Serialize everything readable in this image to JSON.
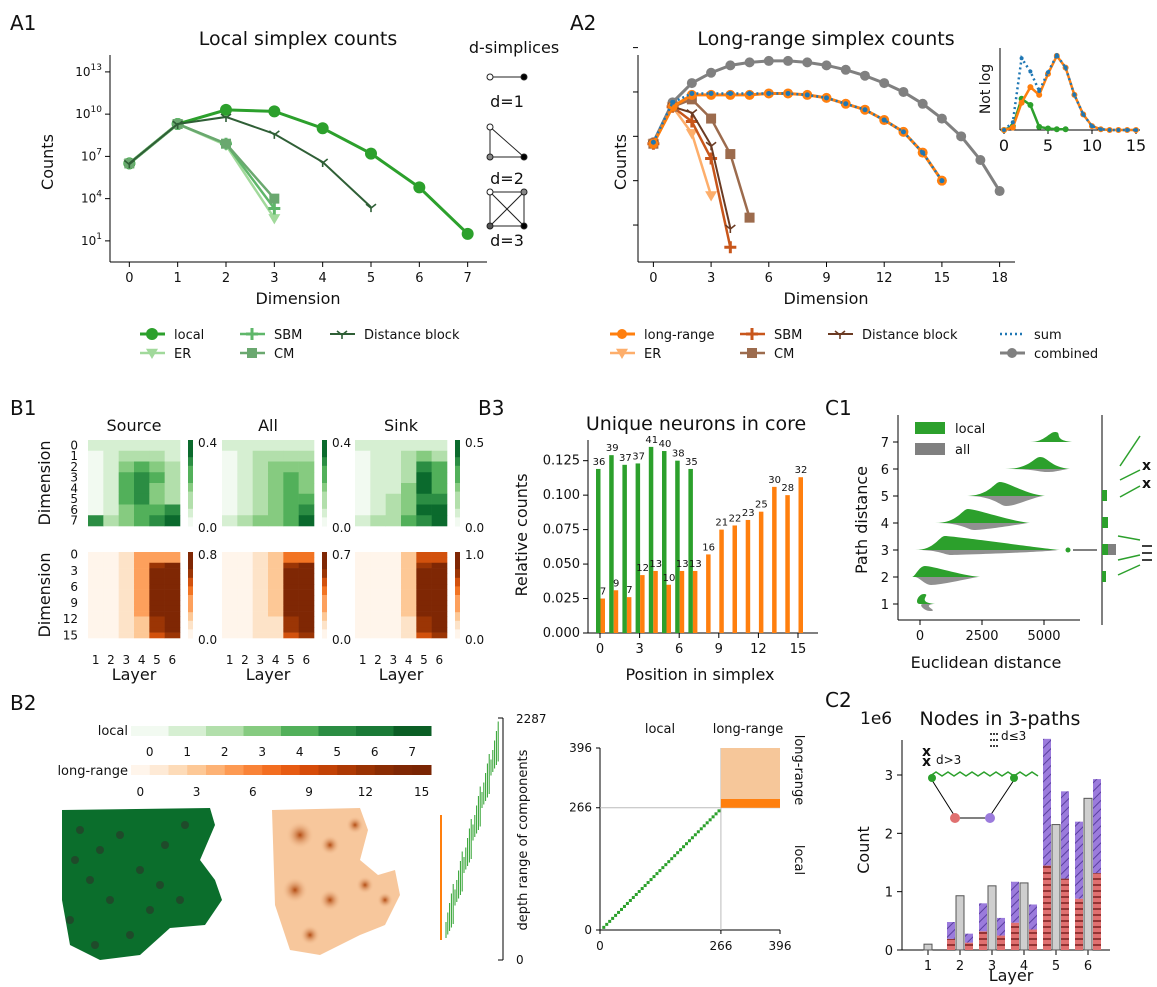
{
  "panels": {
    "A1": "A1",
    "A2": "A2",
    "B1": "B1",
    "B2": "B2",
    "B3": "B3",
    "C1": "C1",
    "C2": "C2"
  },
  "colors": {
    "local": "#2ca02c",
    "local_light": "#a1d99b",
    "local_mid": "#5fb76a",
    "local_dark": "#2f5f36",
    "long": "#ff7f0e",
    "long_light": "#fdae6b",
    "brown": "#b05a2a",
    "brown_light": "#9c6b4d",
    "sum": "#1f77b4",
    "combined": "#808080",
    "red": "#e07070",
    "purple": "#9b7bdc"
  },
  "chart_data": [
    {
      "id": "A1",
      "type": "line",
      "title": "Local simplex counts",
      "xlabel": "Dimension",
      "ylabel": "Counts",
      "yscale": "log",
      "xticks": [
        "0",
        "1",
        "2",
        "3",
        "4",
        "5",
        "6",
        "7"
      ],
      "yticks": [
        "10^1",
        "10^4",
        "10^7",
        "10^10",
        "10^13"
      ],
      "ylim_exp": [
        -0.5,
        14.2
      ],
      "xlim": [
        -0.4,
        7.4
      ],
      "series": [
        {
          "name": "local",
          "x": [
            0,
            1,
            2,
            3,
            4,
            5,
            6,
            7
          ],
          "log10": [
            6.5,
            9.3,
            10.3,
            10.2,
            9.0,
            7.2,
            4.8,
            1.5
          ]
        },
        {
          "name": "ER",
          "x": [
            0,
            1,
            2,
            3
          ],
          "log10": [
            6.5,
            9.3,
            7.8,
            2.6
          ]
        },
        {
          "name": "SBM",
          "x": [
            0,
            1,
            2,
            3
          ],
          "log10": [
            6.5,
            9.3,
            7.9,
            3.3
          ]
        },
        {
          "name": "CM",
          "x": [
            0,
            1,
            2,
            3
          ],
          "log10": [
            6.5,
            9.3,
            7.9,
            4.0
          ]
        },
        {
          "name": "Distance block",
          "x": [
            0,
            1,
            2,
            3,
            4,
            5
          ],
          "log10": [
            6.5,
            9.3,
            9.8,
            8.6,
            6.6,
            3.4
          ]
        }
      ],
      "legend": [
        "local",
        "SBM",
        "Distance block",
        "ER",
        "CM"
      ],
      "inset_title": "d-simplices",
      "inset_labels": [
        "d=1",
        "d=2",
        "d=3"
      ]
    },
    {
      "id": "A2",
      "type": "line",
      "title": "Long-range simplex counts",
      "xlabel": "Dimension",
      "ylabel": "Counts",
      "yscale": "log",
      "xticks": [
        "0",
        "3",
        "6",
        "9",
        "12",
        "15",
        "18"
      ],
      "series": [
        {
          "name": "long-range",
          "x": [
            0,
            1,
            2,
            3,
            4,
            5,
            6,
            7,
            8,
            9,
            10,
            11,
            12,
            13,
            14,
            15
          ],
          "log10": [
            6.5,
            9.0,
            9.8,
            9.8,
            9.8,
            9.8,
            9.9,
            9.9,
            9.8,
            9.6,
            9.2,
            8.8,
            8.1,
            7.3,
            5.9,
            4.0
          ]
        },
        {
          "name": "ER",
          "x": [
            0,
            1,
            2,
            3
          ],
          "log10": [
            6.5,
            9.0,
            7.2,
            3.0
          ]
        },
        {
          "name": "SBM",
          "x": [
            0,
            1,
            2,
            3,
            4
          ],
          "log10": [
            6.5,
            9.0,
            8.0,
            5.5,
            -0.5
          ]
        },
        {
          "name": "CM",
          "x": [
            0,
            1,
            2,
            3,
            4,
            5
          ],
          "log10": [
            6.5,
            9.0,
            9.5,
            8.2,
            5.8,
            1.5
          ]
        },
        {
          "name": "Distance block",
          "x": [
            0,
            1,
            2,
            3,
            4
          ],
          "log10": [
            6.5,
            9.0,
            8.6,
            6.4,
            0.8
          ]
        },
        {
          "name": "sum",
          "x": [
            0,
            1,
            2,
            3,
            4,
            5,
            6,
            7,
            8,
            9,
            10,
            11,
            12,
            13,
            14,
            15
          ],
          "log10": [
            6.6,
            9.3,
            9.9,
            9.9,
            9.9,
            9.9,
            9.9,
            9.9,
            9.8,
            9.6,
            9.2,
            8.8,
            8.1,
            7.3,
            5.9,
            4.0
          ]
        },
        {
          "name": "combined",
          "x": [
            0,
            1,
            2,
            3,
            4,
            5,
            6,
            7,
            8,
            9,
            10,
            11,
            12,
            13,
            14,
            15,
            16,
            17,
            18
          ],
          "log10": [
            6.6,
            9.3,
            10.6,
            11.3,
            11.8,
            12.0,
            12.1,
            12.1,
            12.0,
            11.8,
            11.5,
            11.1,
            10.6,
            10.0,
            9.2,
            8.2,
            7.0,
            5.4,
            3.3
          ]
        }
      ],
      "legend": [
        "long-range",
        "SBM",
        "Distance block",
        "sum",
        "ER",
        "CM",
        "combined"
      ],
      "inset": {
        "ylabel": "Not log",
        "xticks": [
          "0",
          "5",
          "10",
          "15"
        ],
        "series": [
          {
            "name": "local",
            "x": [
              0,
              1,
              2,
              3,
              4,
              5,
              6,
              7
            ],
            "v": [
              0.0,
              0.05,
              0.4,
              0.32,
              0.04,
              0.02,
              0.01,
              0.01
            ]
          },
          {
            "name": "long-range",
            "x": [
              0,
              1,
              2,
              3,
              4,
              5,
              6,
              7,
              8,
              9,
              10,
              11,
              12,
              13,
              14,
              15
            ],
            "v": [
              0.0,
              0.03,
              0.35,
              0.55,
              0.45,
              0.72,
              0.95,
              0.8,
              0.45,
              0.2,
              0.05,
              0.01,
              0.0,
              0.0,
              0.0,
              0.0
            ]
          },
          {
            "name": "sum",
            "x": [
              0,
              1,
              2,
              3,
              4,
              5,
              6,
              7,
              8,
              9,
              10,
              11,
              12,
              13,
              14,
              15
            ],
            "v": [
              0.0,
              0.1,
              0.92,
              0.75,
              0.5,
              0.74,
              0.96,
              0.8,
              0.45,
              0.2,
              0.05,
              0.01,
              0.0,
              0.0,
              0.0,
              0.0
            ]
          }
        ]
      }
    },
    {
      "id": "B1",
      "type": "heatmap",
      "titles": [
        "Source",
        "All",
        "Sink"
      ],
      "xlabel": "Layer",
      "ylabel": "Dimension",
      "xticks": [
        "1",
        "2",
        "3",
        "4",
        "5",
        "6"
      ],
      "row1_yticks": [
        "0",
        "1",
        "2",
        "3",
        "4",
        "5",
        "6",
        "7"
      ],
      "row2_yticks": [
        "0",
        "3",
        "6",
        "9",
        "12",
        "15"
      ],
      "colorbars": [
        [
          "0.4",
          "0.0"
        ],
        [
          "0.4",
          "0.0"
        ],
        [
          "0.5",
          "0.0"
        ],
        [
          "0.8",
          "0.0"
        ],
        [
          "0.7",
          "0.0"
        ],
        [
          "1.0",
          "0.0"
        ]
      ]
    },
    {
      "id": "B3",
      "type": "bar",
      "title": "Unique neurons in core",
      "xlabel": "Position in simplex",
      "ylabel": "Relative counts",
      "yticks": [
        "0.000",
        "0.025",
        "0.050",
        "0.075",
        "0.100",
        "0.125"
      ],
      "xticks": [
        "0",
        "3",
        "6",
        "9",
        "12",
        "15"
      ],
      "ylim": [
        0,
        0.14
      ],
      "local": {
        "x": [
          0,
          1,
          2,
          3,
          4,
          5,
          6,
          7
        ],
        "values": [
          0.119,
          0.129,
          0.122,
          0.123,
          0.135,
          0.132,
          0.125,
          0.119
        ],
        "labels": [
          "36",
          "39",
          "37",
          "37",
          "41",
          "40",
          "38",
          "35"
        ]
      },
      "long_range": {
        "x": [
          0,
          1,
          2,
          3,
          4,
          5,
          6,
          7,
          8,
          9,
          10,
          11,
          12,
          13,
          14,
          15
        ],
        "values": [
          0.025,
          0.031,
          0.026,
          0.042,
          0.045,
          0.035,
          0.045,
          0.045,
          0.057,
          0.075,
          0.078,
          0.082,
          0.088,
          0.106,
          0.1,
          0.113
        ],
        "labels": [
          "7",
          "9",
          "7",
          "12",
          "13",
          "10",
          "13",
          "13",
          "16",
          "21",
          "22",
          "23",
          "25",
          "30",
          "28",
          "32"
        ]
      }
    },
    {
      "id": "C1",
      "type": "area",
      "xlabel": "Euclidean distance",
      "ylabel": "Path distance",
      "xticks": [
        "0",
        "2500",
        "5000"
      ],
      "yticks": [
        "1",
        "2",
        "3",
        "4",
        "5",
        "6",
        "7"
      ],
      "legend": [
        "local",
        "all"
      ]
    },
    {
      "id": "B2",
      "type": "other",
      "colorbar_local": {
        "label": "local",
        "ticks": [
          "0",
          "1",
          "2",
          "3",
          "4",
          "5",
          "6",
          "7"
        ]
      },
      "colorbar_long": {
        "label": "long-range",
        "ticks": [
          "0",
          "3",
          "6",
          "9",
          "12",
          "15"
        ]
      },
      "depth_axis": {
        "label": "depth range of components",
        "top": "2287",
        "bottom": "0"
      },
      "matrix": {
        "top_left": "local",
        "top_right": "long-range",
        "right_top": "long-range",
        "right_bottom": "local",
        "ticks": [
          "0",
          "266",
          "396"
        ]
      }
    },
    {
      "id": "C2",
      "type": "bar",
      "title": "Nodes in 3-paths",
      "xlabel": "Layer",
      "ylabel": "Count",
      "scale_label": "1e6",
      "yticks": [
        "0",
        "1",
        "2",
        "3"
      ],
      "xticks": [
        "1",
        "2",
        "3",
        "4",
        "5",
        "6"
      ],
      "ylim": [
        0,
        3.6
      ],
      "legend": [
        "d>3",
        "d≤3"
      ],
      "groups": [
        {
          "layer": 1,
          "a": 0.0,
          "b": 0.0,
          "grey": 0.1
        },
        {
          "layer": 2,
          "a": 0.48,
          "b": 0.28,
          "grey": 0.93
        },
        {
          "layer": 3,
          "a": 0.8,
          "b": 0.55,
          "grey": 1.1
        },
        {
          "layer": 4,
          "a": 1.17,
          "b": 0.78,
          "grey": 1.15
        },
        {
          "layer": 5,
          "a": 3.62,
          "b": 2.72,
          "grey": 2.15
        },
        {
          "layer": 6,
          "a": 2.2,
          "b": 2.93,
          "grey": 2.6
        }
      ]
    }
  ]
}
